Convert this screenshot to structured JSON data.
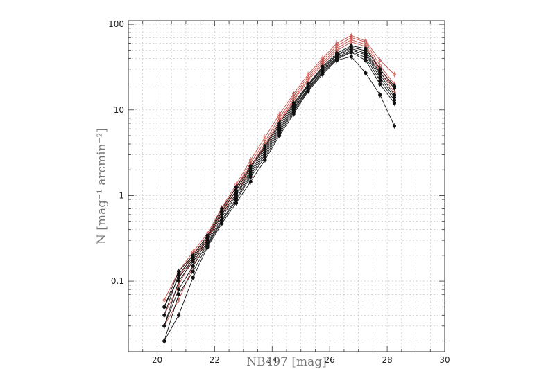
{
  "chart_data": {
    "type": "line",
    "title": "",
    "xlabel": "NB497 [mag]",
    "ylabel": "N [mag⁻¹ arcmin⁻²]",
    "xlim": [
      19,
      30
    ],
    "ylim": [
      0.015,
      110
    ],
    "yscale": "log",
    "grid": true,
    "legend": "none",
    "x_ticks": [
      20,
      22,
      24,
      26,
      28,
      30
    ],
    "y_ticks": [
      0.1,
      1,
      10,
      100
    ],
    "y_tick_labels": [
      "0.1",
      "1",
      "10",
      "100"
    ],
    "x": [
      20.25,
      20.75,
      21.25,
      21.75,
      22.25,
      22.75,
      23.25,
      23.75,
      24.25,
      24.75,
      25.25,
      25.75,
      26.25,
      26.75,
      27.25,
      27.75,
      28.25
    ],
    "colors": {
      "black": "#111111",
      "red": "#c8504a"
    },
    "series": [
      {
        "color": "red",
        "values": [
          0.06,
          0.13,
          0.22,
          0.36,
          0.72,
          1.35,
          2.6,
          4.8,
          8.8,
          15.5,
          26,
          40,
          60,
          74,
          64,
          38,
          26
        ]
      },
      {
        "color": "red",
        "values": [
          0.05,
          0.11,
          0.21,
          0.33,
          0.66,
          1.25,
          2.4,
          4.3,
          8.0,
          14.5,
          24.5,
          38,
          56,
          70,
          62,
          33,
          20
        ]
      },
      {
        "color": "red",
        "values": [
          0.04,
          0.09,
          0.19,
          0.3,
          0.62,
          1.15,
          2.2,
          4.0,
          7.4,
          13.5,
          23,
          36,
          52,
          66,
          58,
          30,
          18
        ]
      },
      {
        "color": "red",
        "values": [
          0.03,
          0.06,
          0.15,
          0.32,
          0.6,
          1.05,
          2.1,
          3.7,
          7.0,
          12.8,
          22,
          34,
          49,
          62,
          55,
          28,
          16
        ]
      },
      {
        "color": "black",
        "values": [
          0.05,
          0.13,
          0.2,
          0.34,
          0.7,
          1.25,
          2.2,
          3.8,
          7.0,
          12.0,
          20,
          32,
          46,
          56,
          52,
          30,
          19
        ]
      },
      {
        "color": "black",
        "values": [
          0.04,
          0.12,
          0.19,
          0.32,
          0.65,
          1.15,
          2.1,
          3.6,
          6.6,
          11.5,
          19.5,
          31,
          44,
          54,
          49,
          27,
          18
        ]
      },
      {
        "color": "black",
        "values": [
          0.05,
          0.11,
          0.18,
          0.3,
          0.6,
          1.05,
          1.95,
          3.4,
          6.2,
          11.0,
          19,
          30,
          43,
          52,
          46,
          26,
          15
        ]
      },
      {
        "color": "black",
        "values": [
          0.03,
          0.1,
          0.17,
          0.28,
          0.56,
          1.0,
          1.85,
          3.2,
          5.9,
          10.5,
          18,
          29,
          41,
          50,
          44,
          24,
          14
        ]
      },
      {
        "color": "black",
        "values": [
          0.03,
          0.08,
          0.15,
          0.27,
          0.52,
          0.92,
          1.75,
          3.0,
          5.6,
          10.0,
          17.5,
          28,
          40,
          48,
          41,
          22,
          13
        ]
      },
      {
        "color": "black",
        "values": [
          0.02,
          0.07,
          0.13,
          0.26,
          0.5,
          0.88,
          1.65,
          2.8,
          5.3,
          9.5,
          17,
          27,
          39,
          47,
          38,
          20,
          12
        ]
      },
      {
        "color": "black",
        "values": [
          0.02,
          0.04,
          0.11,
          0.25,
          0.47,
          0.82,
          1.45,
          2.6,
          5.0,
          9.0,
          16.5,
          26,
          38,
          42,
          27,
          15,
          6.5
        ]
      }
    ]
  }
}
